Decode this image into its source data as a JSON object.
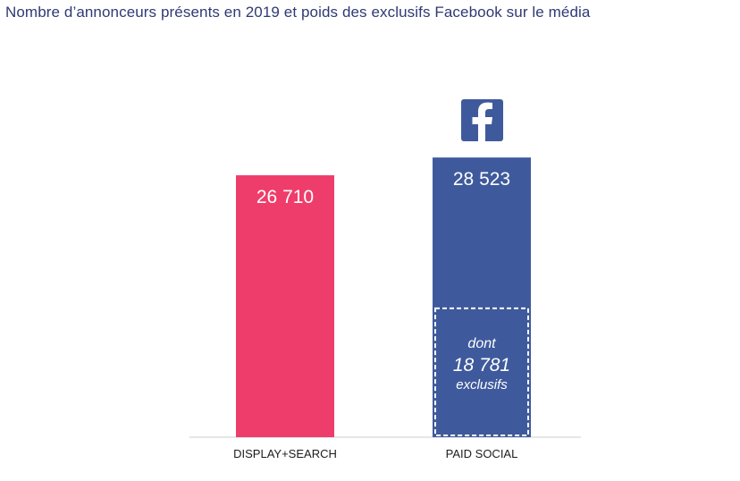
{
  "title": "Nombre d’annonceurs présents en 2019 et poids des exclusifs Facebook sur le média",
  "colors": {
    "display_search": "#ef3d6b",
    "paid_social": "#3f5a9c",
    "title": "#2f3a73",
    "axis": "#cccccc"
  },
  "icons": {
    "facebook": "facebook-logo-icon"
  },
  "chart_data": {
    "type": "bar",
    "categories": [
      "DISPLAY+SEARCH",
      "PAID SOCIAL"
    ],
    "values": [
      26710,
      28523
    ],
    "value_labels": [
      "26 710",
      "28 523"
    ],
    "ylim": [
      0,
      31000
    ],
    "grid": false,
    "annotation": {
      "category": "PAID SOCIAL",
      "lines": [
        "dont",
        "18 781",
        "exclusifs"
      ],
      "value": 18781
    }
  }
}
